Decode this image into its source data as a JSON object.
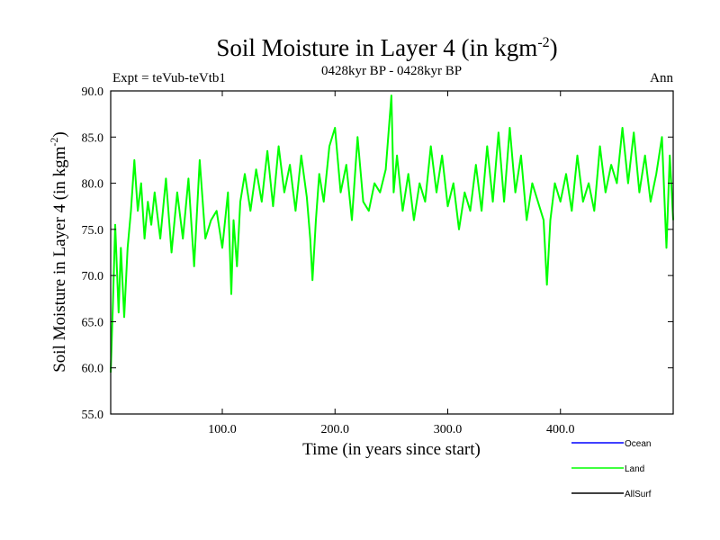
{
  "chart_data": {
    "type": "line",
    "title_main": "Soil Moisture in Layer 4 (in kgm",
    "title_sup": "-2",
    "title_close": ")",
    "subtitle": "0428kyr BP - 0428kyr BP",
    "expt_label": "Expt = teVub-teVtb1",
    "season_label": "Ann",
    "xlabel": "Time (in years since start)",
    "ylabel_main": "Soil Moisture in Layer 4 (in kgm",
    "ylabel_sup": "-2",
    "ylabel_close": ")",
    "xlim": [
      1,
      500
    ],
    "ylim": [
      55,
      90
    ],
    "x_ticks": [
      100,
      200,
      300,
      400
    ],
    "x_tick_labels": [
      "100.0",
      "200.0",
      "300.0",
      "400.0"
    ],
    "y_ticks": [
      55,
      60,
      65,
      70,
      75,
      80,
      85,
      90
    ],
    "y_tick_labels": [
      "55.0",
      "60.0",
      "65.0",
      "70.0",
      "75.0",
      "80.0",
      "85.0",
      "90.0"
    ],
    "grid": false,
    "legend_position": "bottom-right",
    "colors": {
      "Ocean": "#0000ff",
      "Land": "#00ff00",
      "AllSurf": "#000000"
    },
    "legend": [
      "Ocean",
      "Land",
      "AllSurf"
    ],
    "series": [
      {
        "name": "Land",
        "x": [
          1,
          3,
          5,
          8,
          10,
          13,
          16,
          19,
          22,
          25,
          28,
          31,
          34,
          37,
          40,
          45,
          50,
          55,
          60,
          65,
          70,
          75,
          80,
          85,
          90,
          95,
          100,
          105,
          108,
          110,
          113,
          116,
          120,
          125,
          130,
          135,
          140,
          145,
          150,
          155,
          160,
          165,
          170,
          175,
          178,
          180,
          183,
          186,
          190,
          195,
          200,
          205,
          210,
          215,
          220,
          225,
          230,
          235,
          240,
          245,
          250,
          252,
          255,
          260,
          265,
          270,
          275,
          280,
          285,
          290,
          295,
          300,
          305,
          310,
          315,
          320,
          325,
          330,
          335,
          340,
          345,
          350,
          355,
          360,
          365,
          370,
          375,
          380,
          385,
          388,
          391,
          395,
          400,
          405,
          410,
          415,
          420,
          425,
          430,
          435,
          440,
          445,
          450,
          455,
          460,
          465,
          470,
          475,
          480,
          485,
          490,
          494,
          497,
          500
        ],
        "values": [
          59.5,
          67,
          75.5,
          66,
          73,
          65.5,
          73,
          77,
          82.5,
          77,
          80,
          74,
          78,
          75.5,
          79,
          74,
          80.5,
          72.5,
          79,
          74,
          80.5,
          71,
          82.5,
          74,
          76,
          77,
          73,
          79,
          68,
          76,
          71,
          78,
          81,
          77,
          81.5,
          78,
          83.5,
          77.5,
          84,
          79,
          82,
          77,
          83,
          78.5,
          74,
          69.5,
          76,
          81,
          78,
          84,
          86,
          79,
          82,
          76,
          85,
          78,
          77,
          80,
          79,
          81.5,
          89.5,
          79,
          83,
          77,
          81,
          76,
          80,
          78,
          84,
          79,
          83,
          77.5,
          80,
          75,
          79,
          77,
          82,
          77,
          84,
          78,
          85.5,
          78,
          86,
          79,
          83,
          76,
          80,
          78,
          76,
          69,
          76,
          80,
          78,
          81,
          77,
          83,
          78,
          80,
          77,
          84,
          79,
          82,
          80,
          86,
          80,
          85.5,
          79,
          83,
          78,
          81,
          85,
          73,
          83,
          76
        ]
      }
    ]
  }
}
